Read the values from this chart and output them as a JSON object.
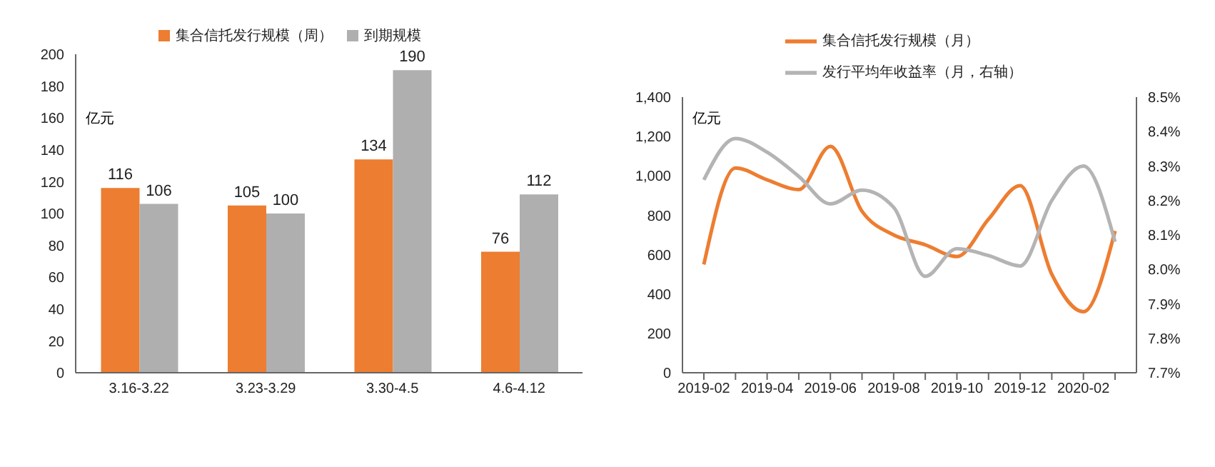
{
  "chart_data": [
    {
      "type": "bar",
      "ylabel": "亿元",
      "categories": [
        "3.16-3.22",
        "3.23-3.29",
        "3.30-4.5",
        "4.6-4.12"
      ],
      "series": [
        {
          "name": "集合信托发行规模（周）",
          "color": "#ed7d31",
          "values": [
            116,
            105,
            134,
            76
          ]
        },
        {
          "name": "到期规模",
          "color": "#afafaf",
          "values": [
            106,
            100,
            190,
            112
          ]
        }
      ],
      "ylim": [
        0,
        200
      ],
      "yticks": [
        0,
        20,
        40,
        60,
        80,
        100,
        120,
        140,
        160,
        180,
        200
      ],
      "data_labels": true,
      "grid": false,
      "legend": "top"
    },
    {
      "type": "line",
      "ylabel": "亿元",
      "categories": [
        "2019-02",
        null,
        "2019-04",
        null,
        "2019-06",
        null,
        "2019-08",
        null,
        "2019-10",
        null,
        "2019-12",
        null,
        "2020-02",
        null
      ],
      "series": [
        {
          "name": "集合信托发行规模（月）",
          "color": "#ed7d31",
          "values": [
            550,
            1040,
            980,
            930,
            1150,
            820,
            700,
            650,
            590,
            780,
            950,
            500,
            310,
            720
          ]
        },
        {
          "name": "发行平均年收益率（月，右轴）",
          "color": "#b4b4b4",
          "axis": "y2",
          "values": [
            8.26,
            8.38,
            8.34,
            8.27,
            8.19,
            8.23,
            8.18,
            7.98,
            8.06,
            8.04,
            8.01,
            8.2,
            8.3,
            8.08
          ]
        }
      ],
      "ylim": [
        0,
        1400
      ],
      "yticks": [
        0,
        200,
        400,
        600,
        800,
        {
          "value": 1000,
          "label": "1,000"
        },
        {
          "value": 1200,
          "label": "1,200"
        },
        {
          "value": 1400,
          "label": "1,400"
        }
      ],
      "y2lim": [
        7.7,
        8.5
      ],
      "y2ticks": [
        {
          "value": 7.7,
          "label": "7.7%"
        },
        {
          "value": 7.8,
          "label": "7.8%"
        },
        {
          "value": 7.9,
          "label": "7.9%"
        },
        {
          "value": 8.0,
          "label": "8.0%"
        },
        {
          "value": 8.1,
          "label": "8.1%"
        },
        {
          "value": 8.2,
          "label": "8.2%"
        },
        {
          "value": 8.3,
          "label": "8.3%"
        },
        {
          "value": 8.4,
          "label": "8.4%"
        },
        {
          "value": 8.5,
          "label": "8.5%"
        }
      ],
      "grid": false,
      "legend": "top",
      "marker": "none",
      "line_style": "solid"
    }
  ]
}
